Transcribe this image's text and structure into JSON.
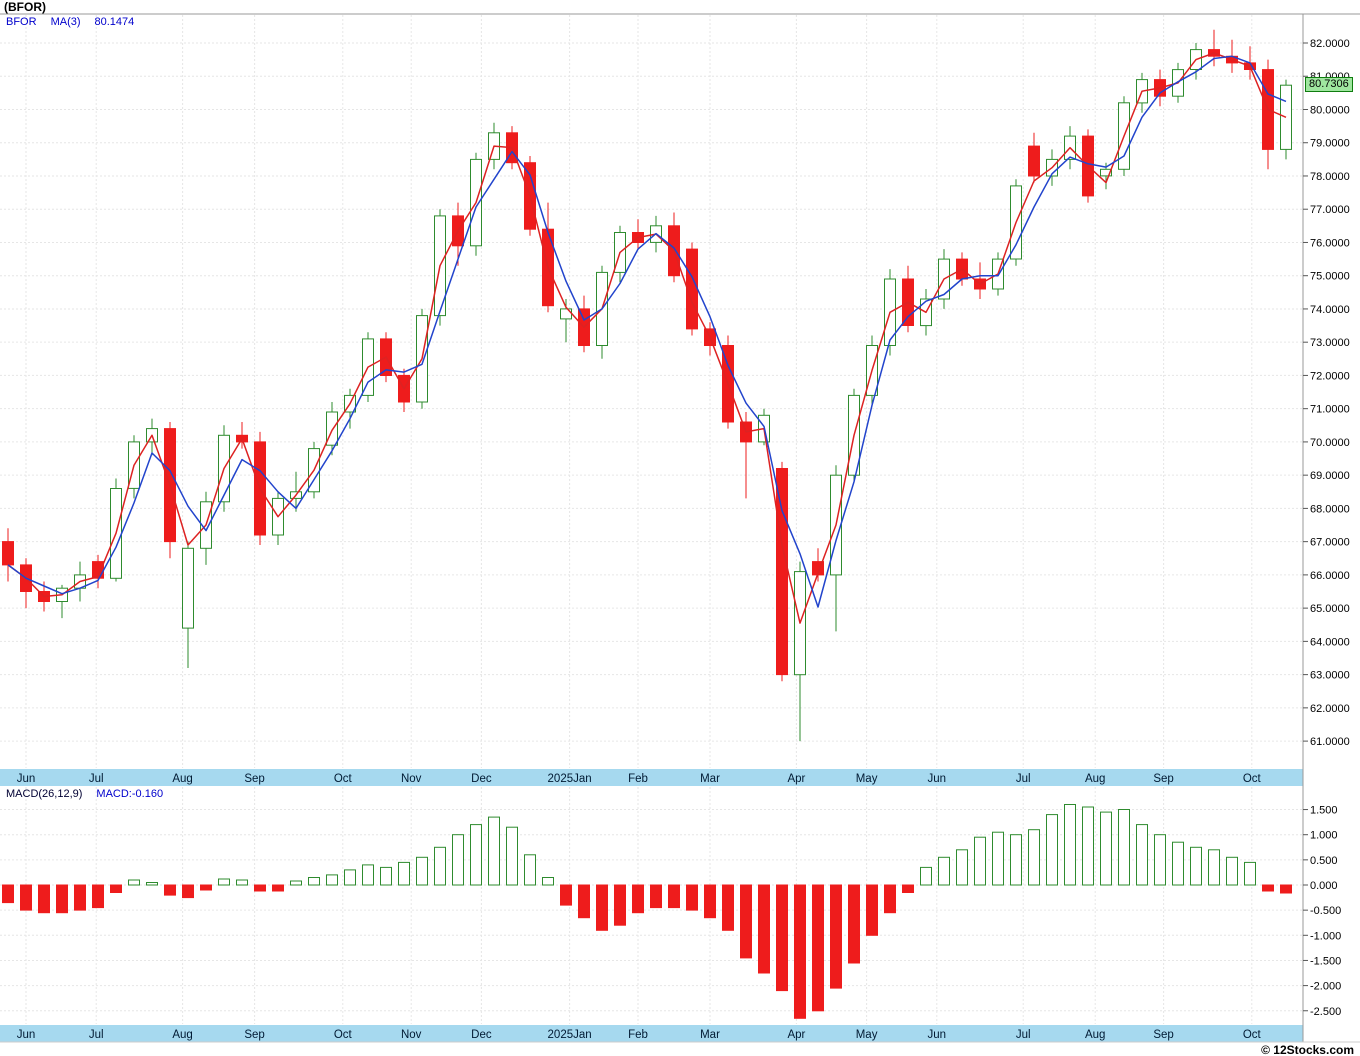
{
  "header": {
    "title": "(BFOR)"
  },
  "legend": {
    "symbol": "BFOR",
    "ma_label": "MA(3)",
    "ma_value": "80.1474"
  },
  "macd_legend": {
    "label": "MACD(26,12,9)",
    "value": "MACD:-0.160"
  },
  "price_flag": "80.7306",
  "copyright": "© 12Stocks.com",
  "colors": {
    "up": "#2e8b2e",
    "down": "#ee1c1c",
    "ma_fast": "#dd2222",
    "ma_slow": "#2244cc",
    "band": "#a6d9ef",
    "band_text": "#001a33",
    "grid": "#e6e6e6",
    "axis_text": "#000000",
    "border": "#999999"
  },
  "chart_data": {
    "type": "candlestick",
    "symbol": "BFOR",
    "interval": "weekly",
    "title": "(BFOR)",
    "legend_entries": [
      "BFOR",
      "MA(3) 80.1474",
      "MACD(26,12,9)",
      "MACD:-0.160"
    ],
    "last_close": 80.7306,
    "ma3_last": 80.1474,
    "macd_last": -0.16,
    "price_axis": {
      "min_label": 61,
      "max_label": 82,
      "step": 1,
      "decimals": 4
    },
    "macd_axis": {
      "min_label": -2.5,
      "max_label": 1.5,
      "step": 0.5,
      "decimals": 3
    },
    "months": [
      {
        "label": "Jun",
        "i": 1.0
      },
      {
        "label": "Jul",
        "i": 4.9
      },
      {
        "label": "Aug",
        "i": 9.7
      },
      {
        "label": "Sep",
        "i": 13.7
      },
      {
        "label": "Oct",
        "i": 18.6
      },
      {
        "label": "Nov",
        "i": 22.4
      },
      {
        "label": "Dec",
        "i": 26.3
      },
      {
        "label": "2025Jan",
        "i": 31.2
      },
      {
        "label": "Feb",
        "i": 35.0
      },
      {
        "label": "Mar",
        "i": 39.0
      },
      {
        "label": "Apr",
        "i": 43.8
      },
      {
        "label": "May",
        "i": 47.7
      },
      {
        "label": "Jun",
        "i": 51.6
      },
      {
        "label": "Jul",
        "i": 56.4
      },
      {
        "label": "Aug",
        "i": 60.4
      },
      {
        "label": "Sep",
        "i": 64.2
      },
      {
        "label": "Oct",
        "i": 69.1
      }
    ],
    "candles": [
      [
        67.0,
        67.4,
        65.8,
        66.3
      ],
      [
        66.3,
        66.5,
        65.0,
        65.5
      ],
      [
        65.5,
        65.8,
        64.9,
        65.2
      ],
      [
        65.2,
        65.7,
        64.7,
        65.6
      ],
      [
        65.6,
        66.4,
        65.2,
        66.0
      ],
      [
        66.4,
        66.6,
        65.6,
        65.9
      ],
      [
        65.9,
        68.9,
        65.8,
        68.6
      ],
      [
        68.6,
        70.2,
        68.3,
        70.0
      ],
      [
        70.0,
        70.7,
        69.6,
        70.4
      ],
      [
        70.4,
        70.6,
        66.5,
        67.0
      ],
      [
        64.4,
        67.0,
        63.2,
        66.8
      ],
      [
        66.8,
        68.5,
        66.3,
        68.2
      ],
      [
        68.2,
        70.5,
        67.9,
        70.2
      ],
      [
        70.2,
        70.6,
        69.8,
        70.0
      ],
      [
        70.0,
        70.3,
        66.9,
        67.2
      ],
      [
        67.2,
        68.5,
        66.9,
        68.3
      ],
      [
        68.3,
        69.1,
        67.9,
        68.5
      ],
      [
        68.5,
        70.0,
        68.3,
        69.8
      ],
      [
        69.9,
        71.2,
        69.6,
        70.9
      ],
      [
        70.9,
        71.6,
        70.4,
        71.4
      ],
      [
        71.4,
        73.3,
        71.2,
        73.1
      ],
      [
        73.1,
        73.3,
        71.8,
        72.0
      ],
      [
        72.0,
        72.2,
        70.9,
        71.2
      ],
      [
        71.2,
        74.0,
        71.0,
        73.8
      ],
      [
        73.8,
        77.0,
        73.5,
        76.8
      ],
      [
        76.8,
        77.2,
        75.3,
        75.9
      ],
      [
        75.9,
        78.7,
        75.6,
        78.5
      ],
      [
        78.5,
        79.6,
        78.2,
        79.3
      ],
      [
        79.3,
        79.5,
        78.2,
        78.4
      ],
      [
        78.4,
        78.6,
        76.2,
        76.4
      ],
      [
        76.4,
        77.2,
        73.9,
        74.1
      ],
      [
        73.7,
        74.3,
        73.0,
        74.0
      ],
      [
        74.0,
        74.4,
        72.7,
        72.9
      ],
      [
        72.9,
        75.3,
        72.5,
        75.1
      ],
      [
        75.1,
        76.5,
        74.8,
        76.3
      ],
      [
        76.3,
        76.7,
        75.8,
        76.0
      ],
      [
        76.0,
        76.8,
        75.7,
        76.5
      ],
      [
        76.5,
        76.9,
        74.8,
        75.0
      ],
      [
        75.8,
        76.0,
        73.2,
        73.4
      ],
      [
        73.4,
        73.6,
        72.6,
        72.9
      ],
      [
        72.9,
        73.2,
        70.4,
        70.6
      ],
      [
        70.6,
        70.9,
        68.3,
        70.0
      ],
      [
        70.0,
        71.0,
        69.9,
        70.8
      ],
      [
        69.2,
        69.4,
        62.8,
        63.0
      ],
      [
        63.0,
        66.4,
        61.0,
        66.1
      ],
      [
        66.4,
        66.8,
        65.8,
        66.0
      ],
      [
        66.0,
        69.3,
        64.3,
        69.0
      ],
      [
        69.0,
        71.6,
        68.8,
        71.4
      ],
      [
        71.4,
        73.2,
        71.1,
        72.9
      ],
      [
        72.9,
        75.2,
        72.6,
        74.9
      ],
      [
        74.9,
        75.3,
        73.3,
        73.5
      ],
      [
        73.5,
        74.6,
        73.2,
        74.3
      ],
      [
        74.3,
        75.8,
        74.0,
        75.5
      ],
      [
        75.5,
        75.7,
        74.7,
        74.9
      ],
      [
        74.9,
        75.4,
        74.3,
        74.6
      ],
      [
        74.6,
        75.7,
        74.4,
        75.5
      ],
      [
        75.5,
        77.9,
        75.3,
        77.7
      ],
      [
        78.9,
        79.3,
        77.8,
        78.0
      ],
      [
        78.0,
        78.8,
        77.7,
        78.5
      ],
      [
        78.5,
        79.5,
        78.2,
        79.2
      ],
      [
        79.2,
        79.4,
        77.2,
        77.4
      ],
      [
        78.0,
        78.4,
        77.6,
        78.2
      ],
      [
        78.2,
        80.4,
        78.0,
        80.2
      ],
      [
        80.2,
        81.1,
        79.9,
        80.9
      ],
      [
        80.9,
        81.2,
        80.1,
        80.4
      ],
      [
        80.4,
        81.4,
        80.2,
        81.2
      ],
      [
        81.2,
        82.0,
        80.9,
        81.8
      ],
      [
        81.8,
        82.4,
        81.3,
        81.6
      ],
      [
        81.6,
        82.1,
        81.1,
        81.4
      ],
      [
        81.4,
        81.9,
        80.9,
        81.2
      ],
      [
        81.2,
        81.5,
        78.2,
        78.8
      ],
      [
        78.8,
        80.9,
        78.5,
        80.73
      ]
    ],
    "macd": [
      -0.35,
      -0.5,
      -0.55,
      -0.55,
      -0.5,
      -0.45,
      -0.15,
      0.1,
      0.05,
      -0.2,
      -0.25,
      -0.1,
      0.12,
      0.1,
      -0.12,
      -0.12,
      0.08,
      0.15,
      0.2,
      0.3,
      0.4,
      0.35,
      0.45,
      0.55,
      0.75,
      1.0,
      1.2,
      1.35,
      1.15,
      0.6,
      0.15,
      -0.4,
      -0.65,
      -0.9,
      -0.8,
      -0.55,
      -0.45,
      -0.45,
      -0.5,
      -0.65,
      -0.9,
      -1.45,
      -1.75,
      -2.1,
      -2.65,
      -2.5,
      -2.05,
      -1.55,
      -1.0,
      -0.55,
      -0.15,
      0.35,
      0.55,
      0.7,
      0.95,
      1.05,
      1.0,
      1.1,
      1.4,
      1.6,
      1.55,
      1.45,
      1.5,
      1.2,
      1.0,
      0.85,
      0.75,
      0.7,
      0.55,
      0.45,
      -0.12,
      -0.16
    ]
  }
}
